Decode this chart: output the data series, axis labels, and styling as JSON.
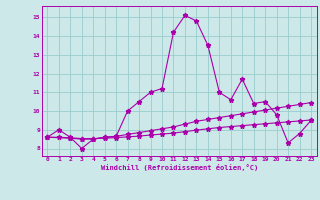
{
  "title": "",
  "xlabel": "Windchill (Refroidissement éolien,°C)",
  "bg_color": "#cce8e8",
  "line_color": "#aa00aa",
  "grid_color": "#99cccc",
  "xlim": [
    -0.5,
    23.5
  ],
  "ylim": [
    7.6,
    15.6
  ],
  "xticks": [
    0,
    1,
    2,
    3,
    4,
    5,
    6,
    7,
    8,
    9,
    10,
    11,
    12,
    13,
    14,
    15,
    16,
    17,
    18,
    19,
    20,
    21,
    22,
    23
  ],
  "yticks": [
    8,
    9,
    10,
    11,
    12,
    13,
    14,
    15
  ],
  "line1_x": [
    0,
    1,
    2,
    3,
    4,
    5,
    6,
    7,
    8,
    9,
    10,
    11,
    12,
    13,
    14,
    15,
    16,
    17,
    18,
    19,
    20,
    21,
    22,
    23
  ],
  "line1_y": [
    8.6,
    9.0,
    8.6,
    8.0,
    8.5,
    8.6,
    8.65,
    10.0,
    10.5,
    11.0,
    11.2,
    14.2,
    15.1,
    14.8,
    13.5,
    11.0,
    10.6,
    11.7,
    10.4,
    10.5,
    9.8,
    8.3,
    8.8,
    9.5
  ],
  "line2_x": [
    0,
    2,
    3,
    4,
    5,
    6,
    7,
    8,
    9,
    10,
    11,
    12,
    13,
    14,
    15,
    16,
    17,
    18,
    19,
    20,
    21,
    22,
    23
  ],
  "line2_y": [
    8.6,
    8.55,
    8.5,
    8.5,
    8.6,
    8.65,
    8.75,
    8.85,
    8.95,
    9.05,
    9.15,
    9.3,
    9.45,
    9.55,
    9.65,
    9.75,
    9.85,
    9.95,
    10.05,
    10.15,
    10.25,
    10.35,
    10.45
  ],
  "line3_x": [
    0,
    1,
    2,
    3,
    4,
    5,
    6,
    7,
    8,
    9,
    10,
    11,
    12,
    13,
    14,
    15,
    16,
    17,
    18,
    19,
    20,
    21,
    22,
    23
  ],
  "line3_y": [
    8.6,
    8.6,
    8.57,
    8.53,
    8.53,
    8.55,
    8.58,
    8.62,
    8.66,
    8.72,
    8.77,
    8.82,
    8.9,
    8.98,
    9.05,
    9.12,
    9.17,
    9.22,
    9.27,
    9.32,
    9.37,
    9.42,
    9.47,
    9.52
  ]
}
